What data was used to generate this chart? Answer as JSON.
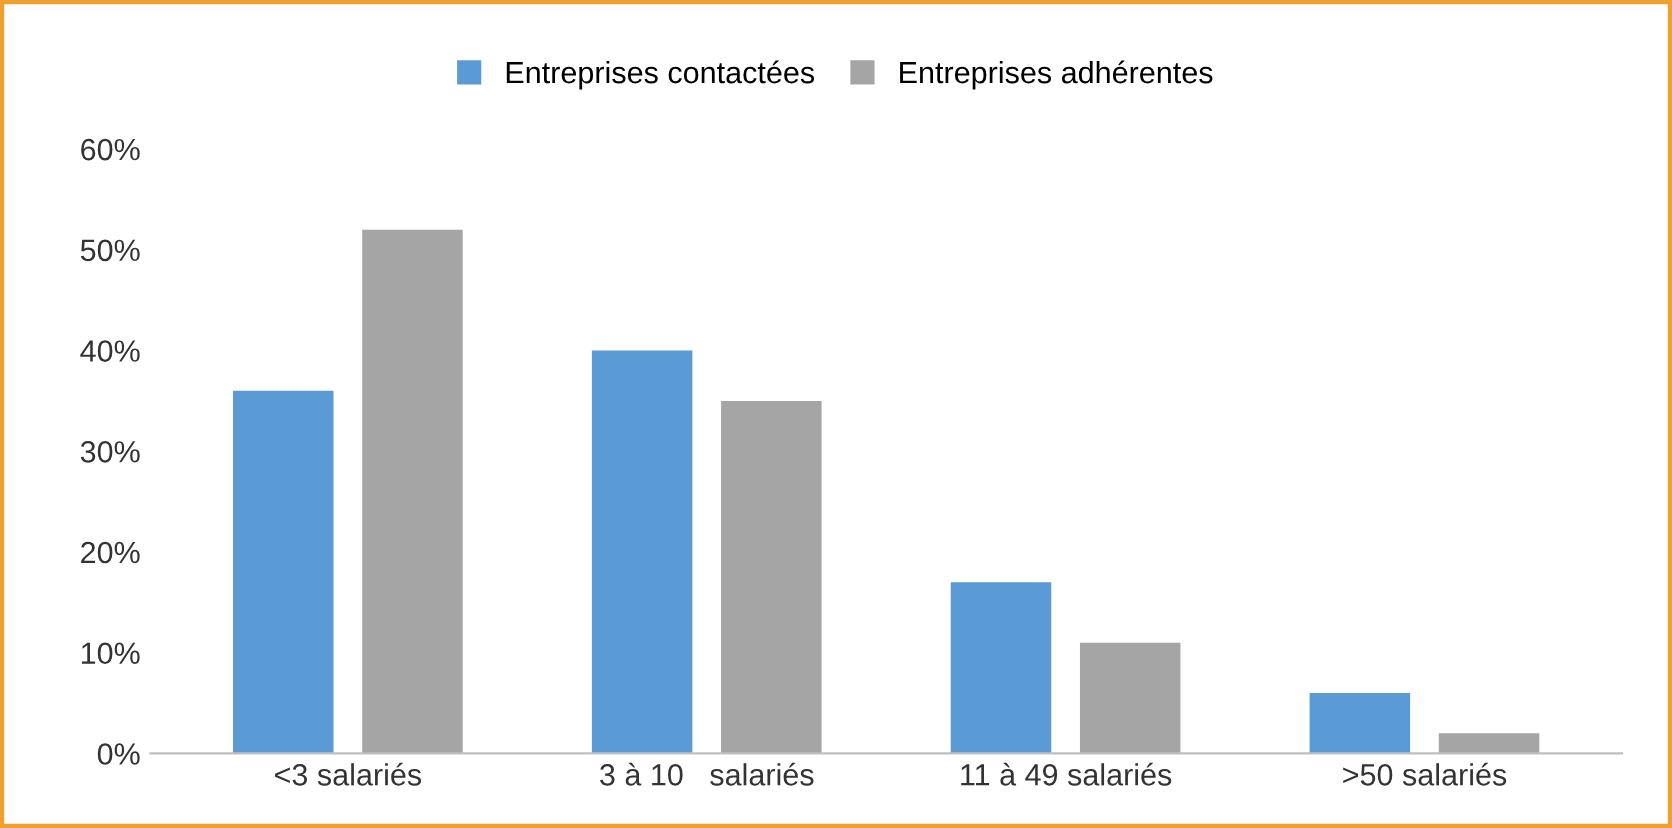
{
  "chart_data": {
    "type": "bar",
    "categories": [
      "<3 salariés",
      "3 à 10   salariés",
      "11 à 49 salariés",
      ">50 salariés"
    ],
    "series": [
      {
        "name": "Entreprises contactées",
        "color": "#5b9bd5",
        "values": [
          36,
          40,
          17,
          6
        ]
      },
      {
        "name": "Entreprises adhérentes",
        "color": "#a5a5a5",
        "values": [
          52,
          35,
          11,
          2
        ]
      }
    ],
    "ylim": [
      0,
      60
    ],
    "yticks": [
      {
        "value": 0,
        "label": "0%"
      },
      {
        "value": 10,
        "label": "10%"
      },
      {
        "value": 20,
        "label": "20%"
      },
      {
        "value": 30,
        "label": "30%"
      },
      {
        "value": 40,
        "label": "40%"
      },
      {
        "value": 50,
        "label": "50%"
      },
      {
        "value": 60,
        "label": "60%"
      }
    ],
    "grid": false,
    "legend": "top"
  }
}
